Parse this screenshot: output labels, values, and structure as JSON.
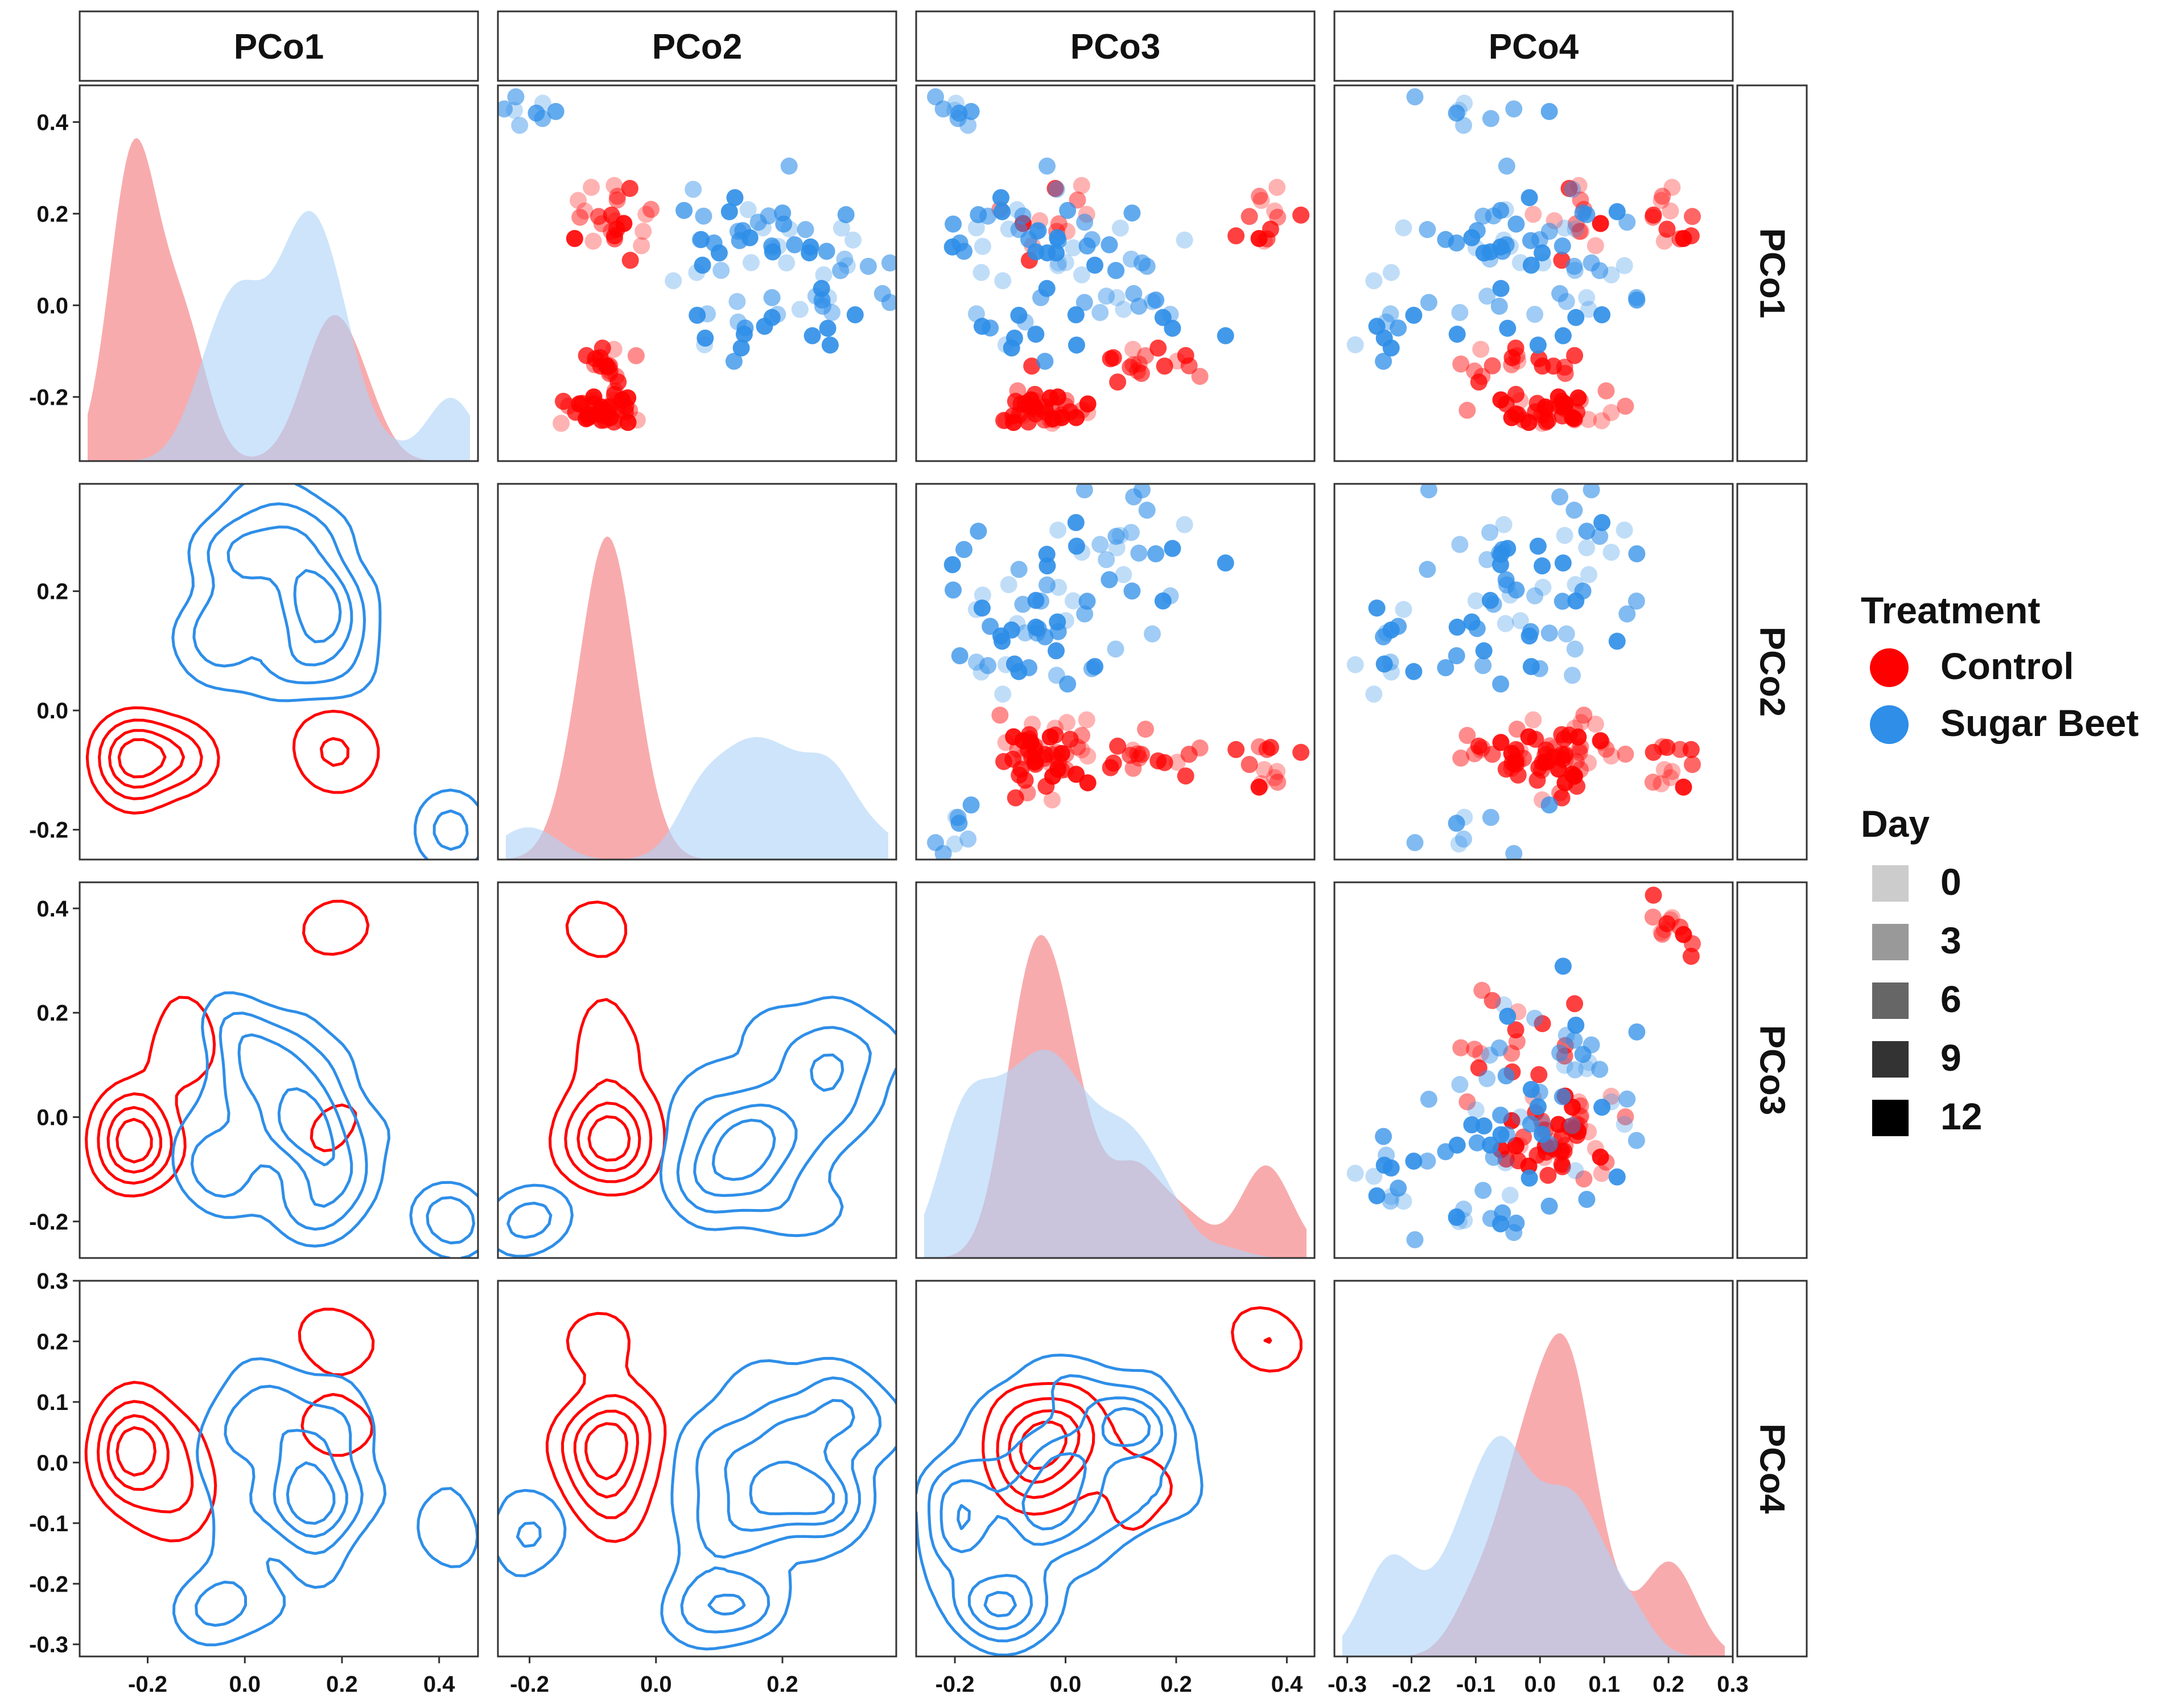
{
  "chart_data": {
    "type": "scatter",
    "title": "",
    "variables": [
      "PCo1",
      "PCo2",
      "PCo3",
      "PCo4"
    ],
    "axes": {
      "PCo1": {
        "range": [
          -0.34,
          0.48
        ],
        "ticks": [
          -0.2,
          0.0,
          0.2,
          0.4
        ],
        "tick_labels": [
          "-0.2",
          "0.0",
          "0.2",
          "0.4"
        ]
      },
      "PCo2": {
        "range": [
          -0.25,
          0.38
        ],
        "ticks": [
          -0.2,
          0.0,
          0.2
        ],
        "tick_labels": [
          "-0.2",
          "0.0",
          "0.2"
        ]
      },
      "PCo3": {
        "range": [
          -0.27,
          0.45
        ],
        "ticks": [
          -0.2,
          0.0,
          0.2,
          0.4
        ],
        "tick_labels": [
          "-0.2",
          "0.0",
          "0.2",
          "0.4"
        ]
      },
      "PCo4": {
        "range": [
          -0.32,
          0.3
        ],
        "ticks": [
          -0.3,
          -0.2,
          -0.1,
          0.0,
          0.1,
          0.2,
          0.3
        ],
        "tick_labels": [
          "-0.3",
          "-0.2",
          "-0.1",
          "0.0",
          "0.1",
          "0.2",
          "0.3"
        ]
      }
    },
    "diagonal": "density",
    "upper_triangle": "scatter",
    "lower_triangle": "density contours",
    "legend": {
      "position": "right",
      "treatment_title": "Treatment",
      "treatment": [
        {
          "name": "Control",
          "color": "#ff0000"
        },
        {
          "name": "Sugar Beet",
          "color": "#2e8ee8"
        }
      ],
      "day_title": "Day",
      "days": [
        {
          "label": "0",
          "opacity": 0.2
        },
        {
          "label": "3",
          "opacity": 0.4
        },
        {
          "label": "6",
          "opacity": 0.6
        },
        {
          "label": "9",
          "opacity": 0.8
        },
        {
          "label": "12",
          "opacity": 1.0
        }
      ]
    },
    "groups": {
      "Control": {
        "color": "#ff0000",
        "fill": "#f4777a",
        "clusters": [
          {
            "PCo1": -0.23,
            "PCo2": -0.09,
            "PCo3": -0.03,
            "PCo4": 0.02,
            "n": 40,
            "sd": [
              0.025,
              0.03,
              0.04,
              0.05
            ]
          },
          {
            "PCo1": -0.13,
            "PCo2": -0.08,
            "PCo3": 0.12,
            "PCo4": -0.05,
            "n": 16,
            "sd": [
              0.03,
              0.02,
              0.06,
              0.05
            ]
          },
          {
            "PCo1": 0.21,
            "PCo2": -0.1,
            "PCo3": 0.38,
            "PCo4": 0.2,
            "n": 12,
            "sd": [
              0.05,
              0.03,
              0.03,
              0.03
            ]
          },
          {
            "PCo1": 0.16,
            "PCo2": -0.06,
            "PCo3": 0.0,
            "PCo4": 0.05,
            "n": 12,
            "sd": [
              0.04,
              0.03,
              0.05,
              0.05
            ]
          }
        ]
      },
      "Sugar Beet": {
        "color": "#2e8ee8",
        "fill": "#aed4f8",
        "clusters": [
          {
            "PCo1": 0.42,
            "PCo2": -0.19,
            "PCo3": -0.2,
            "PCo4": -0.1,
            "n": 8,
            "sd": [
              0.03,
              0.03,
              0.03,
              0.04
            ]
          },
          {
            "PCo1": 0.15,
            "PCo2": 0.16,
            "PCo3": -0.05,
            "PCo4": -0.05,
            "n": 34,
            "sd": [
              0.05,
              0.06,
              0.08,
              0.06
            ]
          },
          {
            "PCo1": 0.05,
            "PCo2": 0.24,
            "PCo3": 0.1,
            "PCo4": 0.05,
            "n": 26,
            "sd": [
              0.08,
              0.07,
              0.06,
              0.08
            ]
          },
          {
            "PCo1": -0.05,
            "PCo2": 0.1,
            "PCo3": -0.1,
            "PCo4": -0.25,
            "n": 12,
            "sd": [
              0.06,
              0.04,
              0.04,
              0.04
            ]
          }
        ]
      }
    }
  }
}
